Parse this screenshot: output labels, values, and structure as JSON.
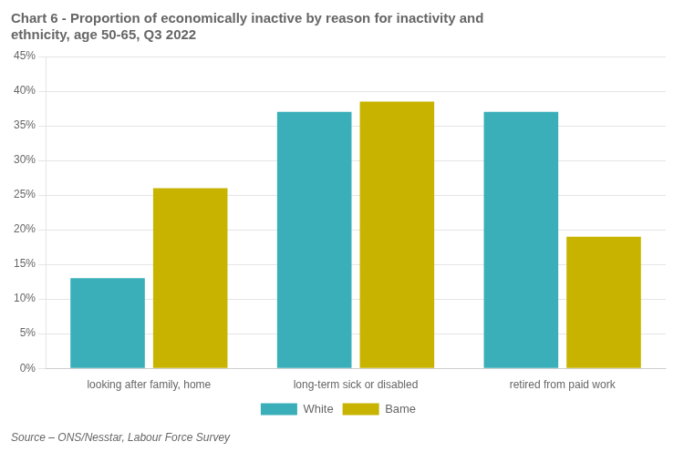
{
  "chart_data": {
    "type": "bar",
    "title": [
      "Chart 6 - Proportion of economically inactive by reason for inactivity and",
      "ethnicity, age 50-65, Q3 2022"
    ],
    "annotations": [
      "Source – ONS/Nesstar, Labour Force Survey"
    ],
    "categories": [
      "looking after family, home",
      "long-term sick or disabled",
      "retired from paid work"
    ],
    "series": [
      {
        "name": "White",
        "color": "#3AAFB9",
        "values": [
          13,
          37,
          37
        ]
      },
      {
        "name": "Bame",
        "color": "#C8B400",
        "values": [
          26,
          38.5,
          19
        ]
      }
    ],
    "ylim": [
      0,
      45
    ],
    "yticks": [
      {
        "value": 0,
        "label": "0%"
      },
      {
        "value": 5,
        "label": "5%"
      },
      {
        "value": 10,
        "label": "10%"
      },
      {
        "value": 15,
        "label": "15%"
      },
      {
        "value": 20,
        "label": "20%"
      },
      {
        "value": 25,
        "label": "25%"
      },
      {
        "value": 30,
        "label": "30%"
      },
      {
        "value": 35,
        "label": "35%"
      },
      {
        "value": 40,
        "label": "40%"
      },
      {
        "value": 45,
        "label": "45%"
      }
    ],
    "grid": true,
    "legend": "bottom"
  }
}
